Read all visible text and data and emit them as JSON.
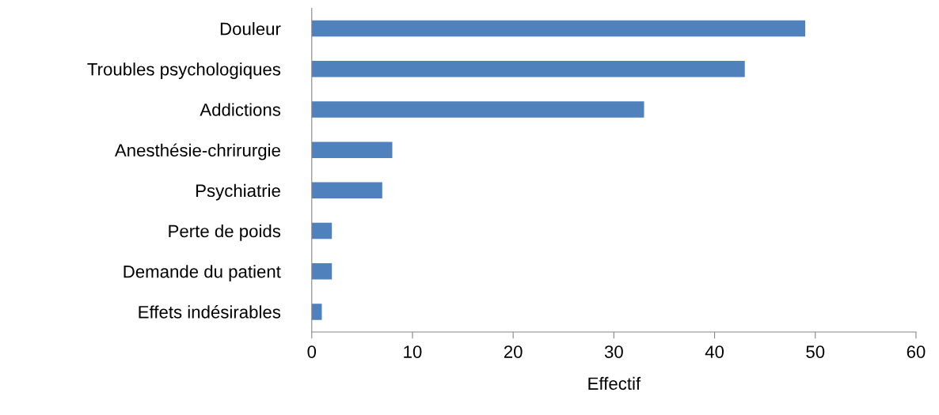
{
  "chart_data": {
    "type": "bar",
    "orientation": "horizontal",
    "xlabel": "Effectif",
    "categories": [
      "Douleur",
      "Troubles psychologiques",
      "Addictions",
      "Anesthésie-chrirurgie",
      "Psychiatrie",
      "Perte de poids",
      "Demande du patient",
      "Effets indésirables"
    ],
    "values": [
      49,
      43,
      33,
      8,
      7,
      2,
      2,
      1
    ],
    "color": "#4f81bd",
    "xlim": [
      0,
      60
    ],
    "xticks": [
      0,
      10,
      20,
      30,
      40,
      50,
      60
    ],
    "grid": false
  }
}
